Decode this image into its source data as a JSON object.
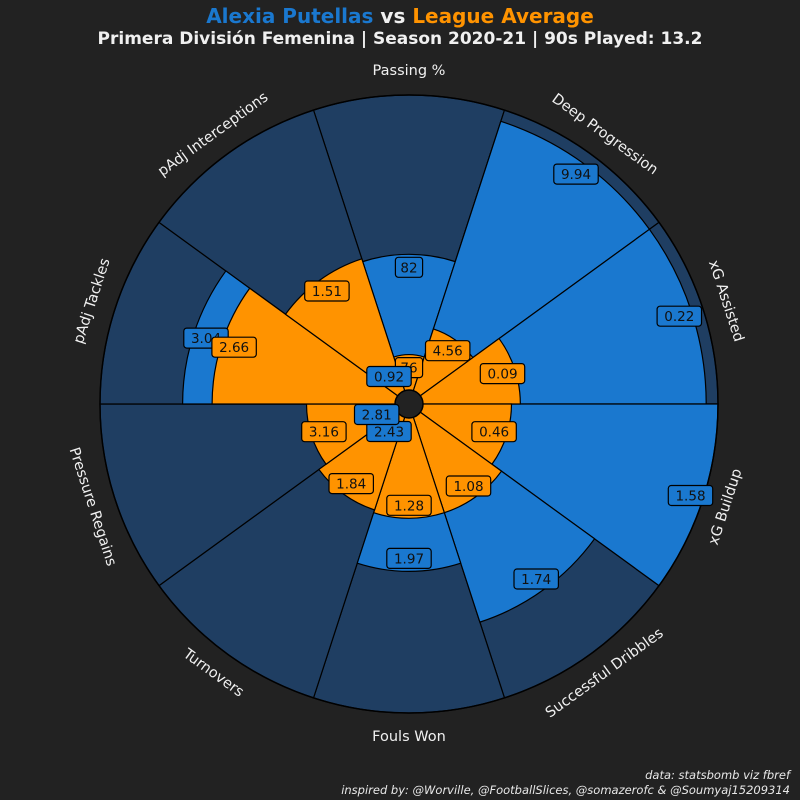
{
  "title": {
    "player": "Alexia Putellas",
    "vs": " vs ",
    "average": "League Average",
    "subtitle": "Primera División Femenina | Season 2020-21 | 90s Played: 13.2"
  },
  "colors": {
    "background": "#222222",
    "player": "#1A78CF",
    "average": "#FF9300",
    "slice_background": "#1F3E62",
    "text": "#F0F0F0",
    "center": "#222222"
  },
  "footer": {
    "line1": "data: statsbomb viz fbref",
    "line2": "inspired by: @Worville, @FootballSlices, @somazerofc & @Soumyaj15209314"
  },
  "chart_data": {
    "type": "pizza",
    "categories": [
      "Passing %",
      "Deep Progression",
      "xG Assisted",
      "xG Buildup",
      "Successful Dribbles",
      "Fouls Won",
      "Turnovers",
      "Pressure Regains",
      "pAdj Tackles",
      "pAdj Interceptions"
    ],
    "series": [
      {
        "name": "Alexia Putellas",
        "values": [
          82,
          9.94,
          0.22,
          1.58,
          1.74,
          1.97,
          2.43,
          2.81,
          3.04,
          0.92
        ],
        "percentiles": [
          46,
          96,
          96,
          100,
          73,
          52,
          10,
          10,
          72,
          9
        ]
      },
      {
        "name": "League Average",
        "values": [
          76,
          4.56,
          0.09,
          0.46,
          1.08,
          1.28,
          1.84,
          3.16,
          2.66,
          1.51
        ],
        "percentiles": [
          12,
          22,
          33,
          30,
          34,
          34,
          33,
          30,
          62,
          47
        ]
      }
    ],
    "scale": "percentile 0-100"
  }
}
